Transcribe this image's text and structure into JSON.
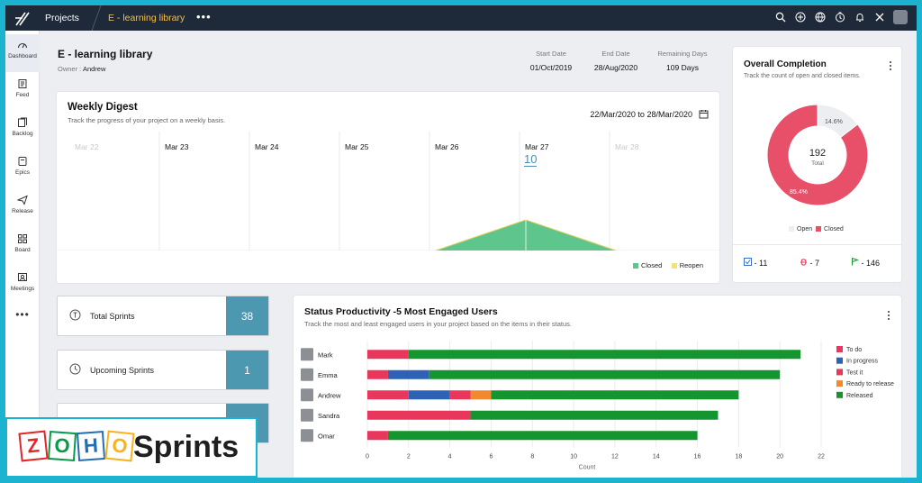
{
  "topbar": {
    "projects_label": "Projects",
    "project_name": "E - learning library",
    "more_label": "•••"
  },
  "sidebar": {
    "items": [
      {
        "label": "Dashboard",
        "icon": "dashboard-icon"
      },
      {
        "label": "Feed",
        "icon": "feed-icon"
      },
      {
        "label": "Backlog",
        "icon": "backlog-icon"
      },
      {
        "label": "Epics",
        "icon": "epics-icon"
      },
      {
        "label": "Release",
        "icon": "release-icon"
      },
      {
        "label": "Board",
        "icon": "board-icon"
      },
      {
        "label": "Meetings",
        "icon": "meetings-icon"
      }
    ],
    "more_label": "•••"
  },
  "project": {
    "title": "E - learning library",
    "owner_prefix": "Owner :",
    "owner_name": "Andrew",
    "start_label": "Start Date",
    "start_value": "01/Oct/2019",
    "end_label": "End Date",
    "end_value": "28/Aug/2020",
    "remaining_label": "Remaining Days",
    "remaining_value": "109 Days"
  },
  "weekly": {
    "title": "Weekly Digest",
    "subtitle": "Track the progress of your project on a weekly basis.",
    "range_start": "22/Mar/2020",
    "range_to": "to",
    "range_end": "28/Mar/2020",
    "days": [
      "Mar 22",
      "Mar 23",
      "Mar 24",
      "Mar 25",
      "Mar 26",
      "Mar 27",
      "Mar 28"
    ],
    "highlight_value": "10",
    "legend_closed": "Closed",
    "legend_reopen": "Reopen",
    "colors": {
      "closed": "#5ec68d",
      "reopen": "#f1e27a"
    }
  },
  "completion": {
    "title": "Overall Completion",
    "subtitle": "Track the count of open and closed items.",
    "total_value": "192",
    "total_label": "Total",
    "open_pct": "14.6%",
    "closed_pct": "85.4%",
    "open_fraction": 0.146,
    "legend_open": "Open",
    "legend_closed": "Closed",
    "colors": {
      "open": "#eceef2",
      "closed": "#e8506a"
    },
    "footer": [
      {
        "icon": "task-icon",
        "value": "- 11"
      },
      {
        "icon": "bug-icon",
        "value": "- 7"
      },
      {
        "icon": "flag-icon",
        "value": "- 146"
      }
    ]
  },
  "sprints": [
    {
      "label": "Total Sprints",
      "value": "38",
      "icon": "sprint-icon"
    },
    {
      "label": "Upcoming Sprints",
      "value": "1",
      "icon": "clock-icon"
    },
    {
      "label": "",
      "value": "",
      "icon": ""
    }
  ],
  "productivity": {
    "title": "Status Productivity -5 Most Engaged Users",
    "subtitle": "Track the most and least engaged users in your project based on the items in their status."
  },
  "chart_data": {
    "type": "bar",
    "orientation": "horizontal",
    "stacked": true,
    "categories": [
      "Mark",
      "Emma",
      "Andrew",
      "Sandra",
      "Omar"
    ],
    "series": [
      {
        "name": "To do",
        "color": "#e8365d",
        "values": [
          2,
          1,
          2,
          5,
          1
        ]
      },
      {
        "name": "In progress",
        "color": "#2f62b5",
        "values": [
          0,
          2,
          2,
          0,
          0
        ]
      },
      {
        "name": "Test it",
        "color": "#e8365d",
        "values": [
          0,
          0,
          1,
          0,
          0
        ]
      },
      {
        "name": "Ready to release",
        "color": "#f0892f",
        "values": [
          0,
          0,
          1,
          0,
          0
        ]
      },
      {
        "name": "Released",
        "color": "#15952f",
        "values": [
          19,
          17,
          12,
          12,
          15
        ]
      }
    ],
    "xlabel": "Count",
    "xlim": [
      0,
      22
    ],
    "xticks": [
      "0",
      "2",
      "4",
      "6",
      "8",
      "10",
      "12",
      "14",
      "16",
      "18",
      "20",
      "22"
    ],
    "grid": true,
    "legend_position": "right"
  },
  "brand": {
    "logo_letters": [
      "Z",
      "O",
      "H",
      "O"
    ],
    "product": "Sprints",
    "colors": {
      "z": "#e42527",
      "o1": "#089949",
      "h": "#226db4",
      "o2": "#f9b21d"
    }
  }
}
